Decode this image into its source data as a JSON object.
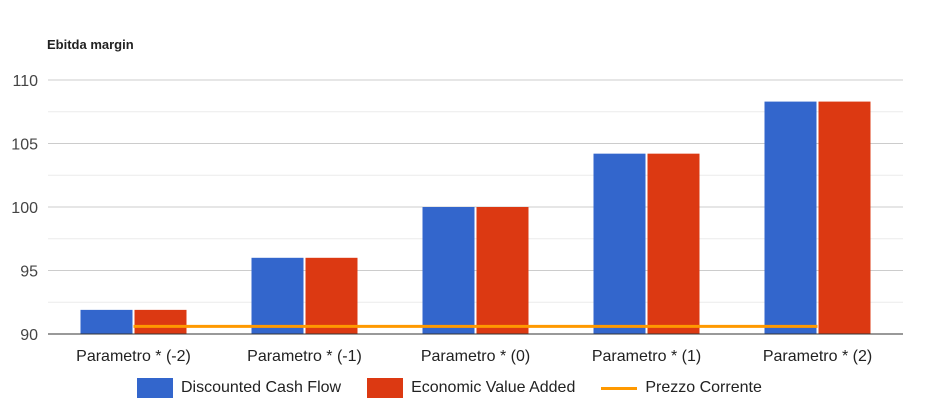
{
  "chart_data": {
    "type": "bar",
    "title": "Ebitda margin",
    "categories": [
      "Parametro * (-2)",
      "Parametro * (-1)",
      "Parametro * (0)",
      "Parametro * (1)",
      "Parametro * (2)"
    ],
    "series": [
      {
        "name": "Discounted Cash Flow",
        "type": "bar",
        "values": [
          91.9,
          96.0,
          100.0,
          104.2,
          108.3
        ],
        "color": "#3366cc"
      },
      {
        "name": "Economic Value Added",
        "type": "bar",
        "values": [
          91.9,
          96.0,
          100.0,
          104.2,
          108.3
        ],
        "color": "#dc3912"
      },
      {
        "name": "Prezzo Corrente",
        "type": "line",
        "values": [
          90.6,
          90.6,
          90.6,
          90.6,
          90.6
        ],
        "color": "#ff9900"
      }
    ],
    "yticks": [
      90,
      95,
      100,
      105,
      110
    ],
    "ylim": [
      90,
      110
    ],
    "grid": true,
    "legend_position": "bottom"
  }
}
